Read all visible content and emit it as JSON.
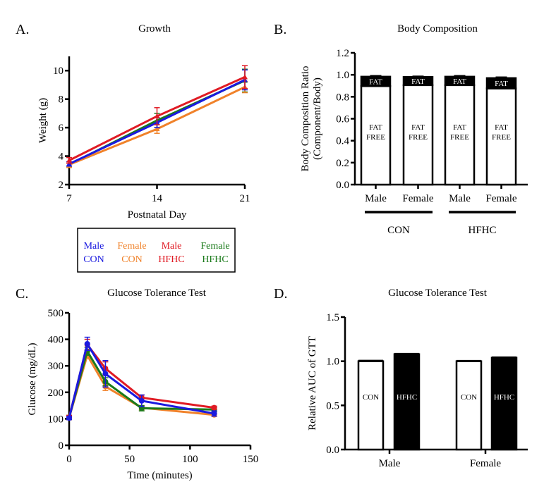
{
  "colors": {
    "Male CON": "#1a1adf",
    "Female CON": "#f0822a",
    "Male HFHC": "#e01b24",
    "Female HFHC": "#1a7a1a"
  },
  "chart_data": [
    {
      "panel": "A.",
      "type": "line",
      "title": "Growth",
      "xlabel": "Postnatal Day",
      "ylabel": "Weight (g)",
      "xlim": [
        7,
        21
      ],
      "ylim": [
        2,
        11
      ],
      "xticks": [
        "7",
        "14",
        "21"
      ],
      "yticks": [
        "2",
        "4",
        "6",
        "8",
        "10"
      ],
      "x": [
        7,
        14,
        21
      ],
      "series": [
        {
          "name": "Female HFHC",
          "values": [
            3.4,
            6.5,
            9.3
          ],
          "errors": [
            0.2,
            0.5,
            0.8
          ]
        },
        {
          "name": "Female CON",
          "values": [
            3.4,
            5.9,
            8.85
          ],
          "errors": [
            0.2,
            0.3,
            0.4
          ]
        },
        {
          "name": "Male CON",
          "values": [
            3.45,
            6.35,
            9.35
          ],
          "errors": [
            0.15,
            0.35,
            0.7
          ]
        },
        {
          "name": "Male HFHC",
          "values": [
            3.7,
            6.8,
            9.55
          ],
          "errors": [
            0.2,
            0.6,
            0.8
          ]
        }
      ]
    },
    {
      "panel": "B.",
      "type": "bar",
      "stacked": true,
      "title": "Body Composition",
      "ylabel": [
        "Body Composition Ratio",
        "(Component/Body)"
      ],
      "ylim": [
        0,
        1.2
      ],
      "yticks": [
        "0.0",
        "0.2",
        "0.4",
        "0.6",
        "0.8",
        "1.0",
        "1.2"
      ],
      "categories": [
        "Male",
        "Female",
        "Male",
        "Female"
      ],
      "groups": [
        {
          "label": "CON",
          "members": [
            0,
            1
          ]
        },
        {
          "label": "HFHC",
          "members": [
            2,
            3
          ]
        }
      ],
      "segment_labels": {
        "fat_free": [
          "FAT",
          "FREE"
        ],
        "fat": "FAT"
      },
      "fat_free": [
        0.897,
        0.906,
        0.906,
        0.876
      ],
      "total": [
        0.983,
        0.98,
        0.983,
        0.97
      ],
      "errors": [
        0.01,
        0.008,
        0.01,
        0.01
      ]
    },
    {
      "panel": "C.",
      "type": "line",
      "title": "Glucose Tolerance Test",
      "xlabel": "Time (minutes)",
      "ylabel": "Glucose (mg/dL)",
      "xlim": [
        0,
        150
      ],
      "ylim": [
        0,
        500
      ],
      "xticks": [
        "0",
        "50",
        "100",
        "150"
      ],
      "yticks": [
        "0",
        "100",
        "200",
        "300",
        "400",
        "500"
      ],
      "x": [
        0,
        15,
        30,
        60,
        120
      ],
      "series": [
        {
          "name": "Female CON",
          "values": [
            105,
            340,
            222,
            142,
            115
          ],
          "errors": [
            8,
            12,
            15,
            8,
            6
          ]
        },
        {
          "name": "Female HFHC",
          "values": [
            105,
            355,
            240,
            140,
            135
          ],
          "errors": [
            8,
            15,
            15,
            10,
            8
          ]
        },
        {
          "name": "Male HFHC",
          "values": [
            105,
            380,
            290,
            180,
            142
          ],
          "errors": [
            8,
            20,
            25,
            10,
            6
          ]
        },
        {
          "name": "Male CON",
          "values": [
            103,
            383,
            270,
            168,
            120
          ],
          "errors": [
            6,
            25,
            50,
            22,
            10
          ]
        }
      ]
    },
    {
      "panel": "D.",
      "type": "bar",
      "title": "Glucose Tolerance Test",
      "ylabel": "Relative AUC of GTT",
      "ylim": [
        0,
        1.5
      ],
      "yticks": [
        "0.0",
        "0.5",
        "1.0",
        "1.5"
      ],
      "categories": [
        "Male",
        "Female"
      ],
      "series": [
        {
          "name": "CON",
          "values": [
            1.0,
            1.0
          ],
          "errors": [
            0.01,
            0.008
          ]
        },
        {
          "name": "HFHC",
          "values": [
            1.08,
            1.04
          ],
          "errors": [
            0.008,
            0.008
          ]
        }
      ]
    }
  ],
  "legend": [
    {
      "line1": "Male",
      "line2": "CON",
      "key": "Male CON"
    },
    {
      "line1": "Female",
      "line2": "CON",
      "key": "Female CON"
    },
    {
      "line1": "Male",
      "line2": "HFHC",
      "key": "Male HFHC"
    },
    {
      "line1": "Female",
      "line2": "HFHC",
      "key": "Female HFHC"
    }
  ]
}
